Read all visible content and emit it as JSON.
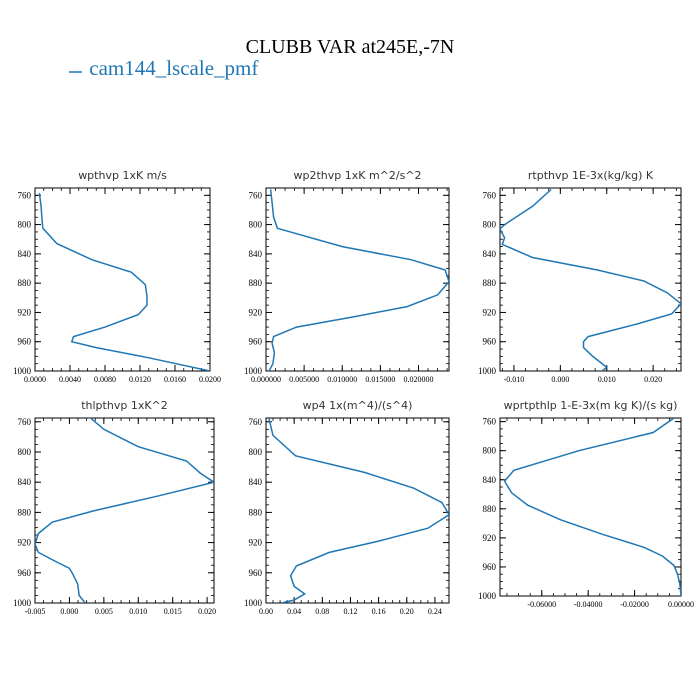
{
  "title": "CLUBB VAR at245E,-7N",
  "legend": {
    "label": "cam144_lscale_pmf",
    "color": "#1f77b4"
  },
  "chart_data": [
    {
      "type": "line",
      "title": "wpthvp  1xK m/s",
      "xlim": [
        0.0,
        0.02
      ],
      "ylim": [
        1000,
        750
      ],
      "xticks": [
        0.0,
        0.004,
        0.008,
        0.012,
        0.016,
        0.02
      ],
      "xticklabels": [
        "0.0000",
        "0.0040",
        "0.0080",
        "0.0120",
        "0.0160",
        "0.0200"
      ],
      "yticks": [
        760,
        800,
        840,
        880,
        920,
        960,
        1000
      ],
      "series": [
        {
          "color": "#1f77b4",
          "points": [
            [
              0.0005,
              757
            ],
            [
              0.0007,
              775
            ],
            [
              0.0008,
              793
            ],
            [
              0.0009,
              805
            ],
            [
              0.0025,
              826
            ],
            [
              0.0065,
              848
            ],
            [
              0.011,
              865
            ],
            [
              0.0126,
              882
            ],
            [
              0.0128,
              898
            ],
            [
              0.0128,
              910
            ],
            [
              0.0118,
              923
            ],
            [
              0.008,
              940
            ],
            [
              0.0044,
              953
            ],
            [
              0.0042,
              960
            ],
            [
              0.007,
              968
            ],
            [
              0.013,
              982
            ],
            [
              0.02,
              1000
            ]
          ]
        }
      ]
    },
    {
      "type": "line",
      "title": "wp2thvp  1xK m^2/s^2",
      "xlim": [
        0.0,
        0.024
      ],
      "ylim": [
        1000,
        750
      ],
      "xticks": [
        0.0,
        0.005,
        0.01,
        0.015,
        0.02
      ],
      "xticklabels": [
        "0.000000",
        "0.005000",
        "0.010000",
        "0.015000",
        "0.020000"
      ],
      "yticks": [
        760,
        800,
        840,
        880,
        920,
        960,
        1000
      ],
      "series": [
        {
          "color": "#1f77b4",
          "points": [
            [
              0.0006,
              752
            ],
            [
              0.0008,
              770
            ],
            [
              0.001,
              790
            ],
            [
              0.0015,
              805
            ],
            [
              0.01,
              830
            ],
            [
              0.019,
              848
            ],
            [
              0.0235,
              862
            ],
            [
              0.024,
              878
            ],
            [
              0.0225,
              896
            ],
            [
              0.0185,
              912
            ],
            [
              0.012,
              925
            ],
            [
              0.004,
              940
            ],
            [
              0.001,
              953
            ],
            [
              0.0008,
              962
            ],
            [
              0.0011,
              975
            ],
            [
              0.0009,
              990
            ],
            [
              0.0004,
              1000
            ]
          ]
        }
      ]
    },
    {
      "type": "line",
      "title": "rtpthvp  1E-3x(kg/kg) K",
      "xlim": [
        -0.013,
        0.026
      ],
      "ylim": [
        1000,
        750
      ],
      "xticks": [
        -0.01,
        0.0,
        0.01,
        0.02
      ],
      "xticklabels": [
        "-0.010",
        "0.000",
        "0.010",
        "0.020"
      ],
      "yticks": [
        760,
        800,
        840,
        880,
        920,
        960,
        1000
      ],
      "series": [
        {
          "color": "#1f77b4",
          "points": [
            [
              -0.002,
              752
            ],
            [
              -0.006,
              775
            ],
            [
              -0.012,
              800
            ],
            [
              -0.013,
              806
            ],
            [
              -0.012,
              818
            ],
            [
              -0.0125,
              827
            ],
            [
              -0.006,
              845
            ],
            [
              0.008,
              862
            ],
            [
              0.018,
              877
            ],
            [
              0.023,
              893
            ],
            [
              0.026,
              908
            ],
            [
              0.024,
              922
            ],
            [
              0.017,
              935
            ],
            [
              0.006,
              953
            ],
            [
              0.005,
              960
            ],
            [
              0.005,
              968
            ],
            [
              0.007,
              980
            ],
            [
              0.01,
              995
            ],
            [
              0.009,
              1000
            ]
          ]
        }
      ]
    },
    {
      "type": "line",
      "title": "thlpthvp  1xK^2",
      "xlim": [
        -0.005,
        0.021
      ],
      "ylim": [
        1000,
        755
      ],
      "xticks": [
        -0.005,
        0.0,
        0.005,
        0.01,
        0.015,
        0.02
      ],
      "xticklabels": [
        "-0.005",
        "0.000",
        "0.005",
        "0.010",
        "0.015",
        "0.020"
      ],
      "yticks": [
        760,
        800,
        840,
        880,
        920,
        960,
        1000
      ],
      "series": [
        {
          "color": "#1f77b4",
          "points": [
            [
              0.0028,
              753
            ],
            [
              0.005,
              770
            ],
            [
              0.01,
              793
            ],
            [
              0.017,
              812
            ],
            [
              0.019,
              828
            ],
            [
              0.021,
              840
            ],
            [
              0.013,
              858
            ],
            [
              0.0035,
              878
            ],
            [
              -0.0025,
              893
            ],
            [
              -0.0045,
              908
            ],
            [
              -0.005,
              922
            ],
            [
              -0.0045,
              933
            ],
            [
              -0.002,
              945
            ],
            [
              0.0,
              954
            ],
            [
              0.0005,
              962
            ],
            [
              0.0012,
              975
            ],
            [
              0.0014,
              990
            ],
            [
              0.0022,
              999
            ]
          ]
        }
      ]
    },
    {
      "type": "line",
      "title": "wp4  1x(m^4)/(s^4)",
      "xlim": [
        0.0,
        0.26
      ],
      "ylim": [
        1000,
        755
      ],
      "xticks": [
        0.0,
        0.04,
        0.08,
        0.12,
        0.16,
        0.2,
        0.24
      ],
      "xticklabels": [
        "0.00",
        "0.04",
        "0.08",
        "0.12",
        "0.16",
        "0.20",
        "0.24"
      ],
      "yticks": [
        760,
        800,
        840,
        880,
        920,
        960,
        1000
      ],
      "series": [
        {
          "color": "#1f77b4",
          "points": [
            [
              0.004,
              755
            ],
            [
              0.01,
              778
            ],
            [
              0.042,
              805
            ],
            [
              0.14,
              827
            ],
            [
              0.21,
              848
            ],
            [
              0.25,
              867
            ],
            [
              0.26,
              883
            ],
            [
              0.23,
              901
            ],
            [
              0.16,
              918
            ],
            [
              0.09,
              933
            ],
            [
              0.043,
              951
            ],
            [
              0.035,
              964
            ],
            [
              0.04,
              978
            ],
            [
              0.055,
              988
            ],
            [
              0.04,
              996
            ],
            [
              0.022,
              1000
            ]
          ]
        }
      ]
    },
    {
      "type": "line",
      "title": "wprtpthlp  1-E-3x(m kg K)/(s kg)",
      "xlim": [
        -0.078,
        0.0
      ],
      "ylim": [
        1000,
        755
      ],
      "xticks": [
        -0.06,
        -0.04,
        -0.02,
        0.0
      ],
      "xticklabels": [
        "-0.06000",
        "-0.04000",
        "-0.02000",
        "0.00000"
      ],
      "yticks": [
        760,
        800,
        840,
        880,
        920,
        960,
        1000
      ],
      "series": [
        {
          "color": "#1f77b4",
          "points": [
            [
              -0.003,
              755
            ],
            [
              -0.012,
              775
            ],
            [
              -0.044,
              800
            ],
            [
              -0.072,
              827
            ],
            [
              -0.076,
              842
            ],
            [
              -0.073,
              858
            ],
            [
              -0.066,
              875
            ],
            [
              -0.052,
              895
            ],
            [
              -0.034,
              915
            ],
            [
              -0.016,
              933
            ],
            [
              -0.008,
              945
            ],
            [
              -0.003,
              958
            ],
            [
              -0.0015,
              970
            ],
            [
              -0.0005,
              983
            ],
            [
              0.0,
              1000
            ]
          ]
        }
      ]
    }
  ]
}
